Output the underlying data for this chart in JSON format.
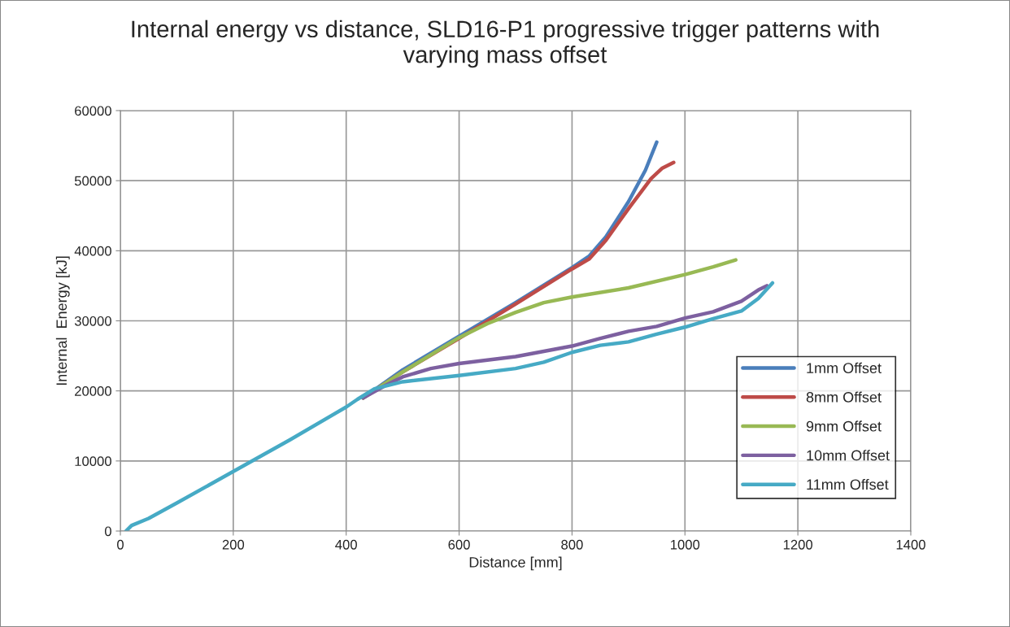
{
  "chart_data": {
    "type": "line",
    "title": "Internal energy vs distance, SLD16-P1 progressive trigger patterns with\nvarying mass offset",
    "xlabel": "Distance [mm]",
    "ylabel": "Internal  Energy [kJ]",
    "xlim": [
      0,
      1400
    ],
    "xticks": [
      0,
      200,
      400,
      600,
      800,
      1000,
      1200,
      1400
    ],
    "ylim": [
      0,
      60000
    ],
    "yticks": [
      0,
      10000,
      20000,
      30000,
      40000,
      50000,
      60000
    ],
    "grid": true,
    "legend": "right",
    "marker": "none",
    "line_style": "solid",
    "series": [
      {
        "name": "1mm Offset",
        "color": "#4a7ebb",
        "x": [
          430,
          500,
          600,
          700,
          800,
          830,
          860,
          900,
          930,
          950
        ],
        "values": [
          19000,
          23000,
          27800,
          32600,
          37600,
          39200,
          42000,
          47000,
          51500,
          55500
        ]
      },
      {
        "name": "8mm Offset",
        "color": "#be4b48",
        "x": [
          430,
          500,
          600,
          700,
          800,
          830,
          860,
          900,
          940,
          960,
          980
        ],
        "values": [
          19000,
          22700,
          27500,
          32400,
          37400,
          38800,
          41500,
          46000,
          50300,
          51800,
          52600
        ]
      },
      {
        "name": "9mm Offset",
        "color": "#98b954",
        "x": [
          430,
          500,
          600,
          650,
          700,
          750,
          800,
          900,
          1000,
          1050,
          1090
        ],
        "values": [
          19000,
          22700,
          27600,
          29600,
          31200,
          32600,
          33400,
          34700,
          36600,
          37700,
          38700
        ]
      },
      {
        "name": "10mm Offset",
        "color": "#7d60a0",
        "x": [
          430,
          470,
          500,
          550,
          600,
          700,
          800,
          850,
          900,
          950,
          1000,
          1050,
          1100,
          1130,
          1145
        ],
        "values": [
          19000,
          20800,
          22000,
          23200,
          23900,
          24900,
          26400,
          27500,
          28500,
          29200,
          30400,
          31300,
          32800,
          34400,
          35000
        ]
      },
      {
        "name": "11mm Offset",
        "color": "#46aac5",
        "x": [
          10,
          20,
          50,
          100,
          200,
          300,
          400,
          420,
          450,
          500,
          600,
          700,
          750,
          800,
          850,
          900,
          950,
          1000,
          1050,
          1100,
          1130,
          1155
        ],
        "values": [
          0,
          800,
          1800,
          4000,
          8500,
          13000,
          17700,
          18800,
          20300,
          21300,
          22200,
          23200,
          24100,
          25500,
          26500,
          27000,
          28100,
          29100,
          30300,
          31400,
          33200,
          35400
        ]
      }
    ]
  }
}
